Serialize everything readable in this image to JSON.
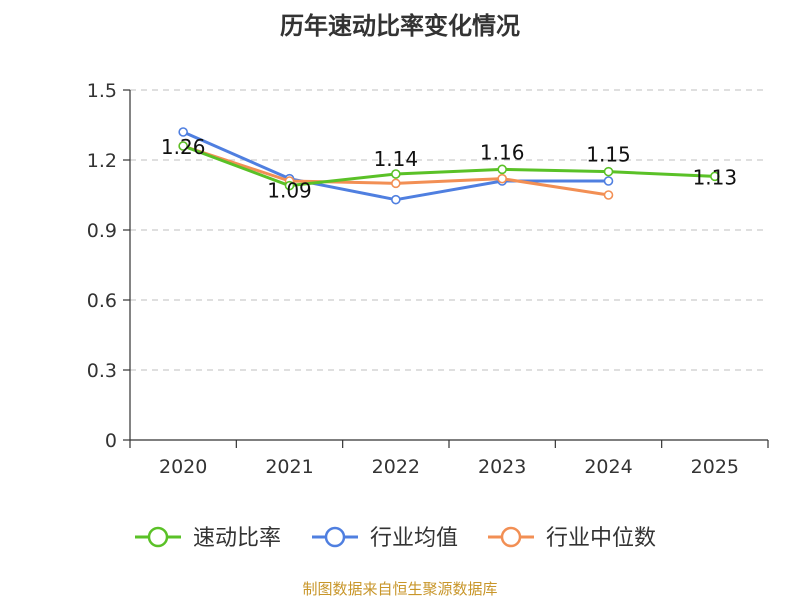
{
  "chart_data": {
    "type": "line",
    "title": "历年速动比率变化情况",
    "categories": [
      "2020",
      "2021",
      "2022",
      "2023",
      "2024",
      "2025"
    ],
    "ylim": [
      0,
      1.5
    ],
    "yticks": [
      "0",
      "0.3",
      "0.6",
      "0.9",
      "1.2",
      "1.5"
    ],
    "grid": true,
    "legend_position": "bottom",
    "series": [
      {
        "name": "速动比率",
        "color": "#5ac127",
        "show_labels": true,
        "values": [
          1.26,
          1.09,
          1.14,
          1.16,
          1.15,
          1.13
        ],
        "labels": [
          "1.26",
          "1.09",
          "1.14",
          "1.16",
          "1.15",
          "1.13"
        ]
      },
      {
        "name": "行业均值",
        "color": "#4f7fe0",
        "show_labels": false,
        "values": [
          1.32,
          1.12,
          1.03,
          1.11,
          1.11,
          null
        ]
      },
      {
        "name": "行业中位数",
        "color": "#f28f54",
        "show_labels": false,
        "values": [
          1.26,
          1.11,
          1.1,
          1.12,
          1.05,
          null
        ]
      }
    ]
  },
  "source_text": "制图数据来自恒生聚源数据库"
}
